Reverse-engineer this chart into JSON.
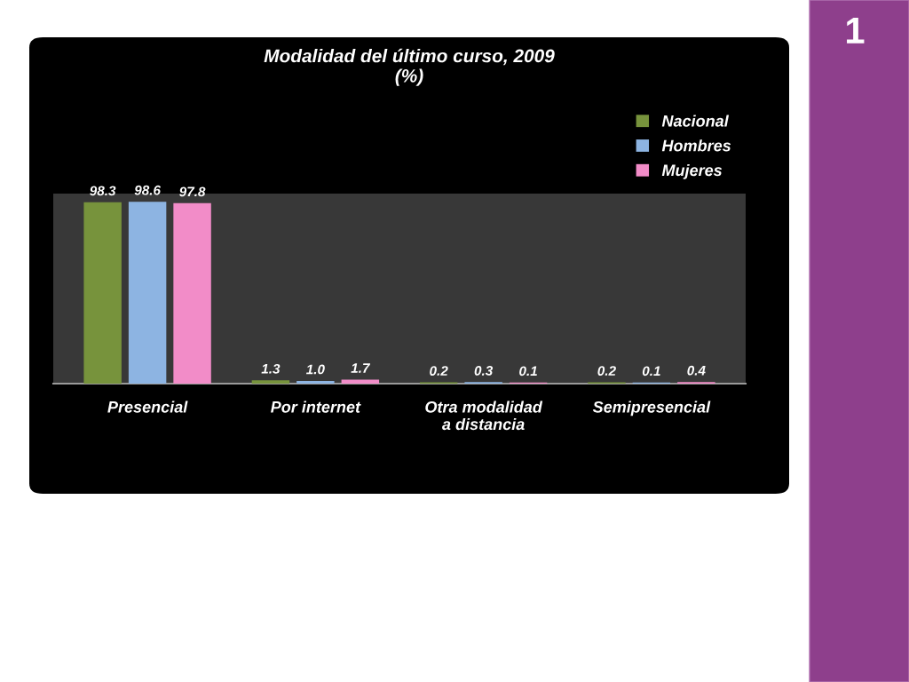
{
  "chart_data": {
    "type": "bar",
    "title": "Modalidad del último curso, 2009\n(%)",
    "categories": [
      "Presencial",
      "Por internet",
      "Otra modalidad\na distancia",
      "Semipresencial"
    ],
    "series": [
      {
        "name": "Nacional",
        "color": "#77933c",
        "values": [
          98.3,
          1.3,
          0.2,
          0.2
        ],
        "value_labels": [
          "98.3",
          "1.3",
          "0.2",
          "0.2"
        ]
      },
      {
        "name": "Hombres",
        "color": "#8db4e2",
        "values": [
          98.6,
          1.0,
          0.3,
          0.1
        ],
        "value_labels": [
          "98.6",
          "1.0",
          "0.3",
          "0.1"
        ]
      },
      {
        "name": "Mujeres",
        "color": "#f28cc8",
        "values": [
          97.8,
          1.7,
          0.1,
          0.4
        ],
        "value_labels": [
          "97.8",
          "1.7",
          "0.1",
          "0.4"
        ]
      }
    ],
    "legend": "top right",
    "annotations": [
      "1"
    ]
  }
}
